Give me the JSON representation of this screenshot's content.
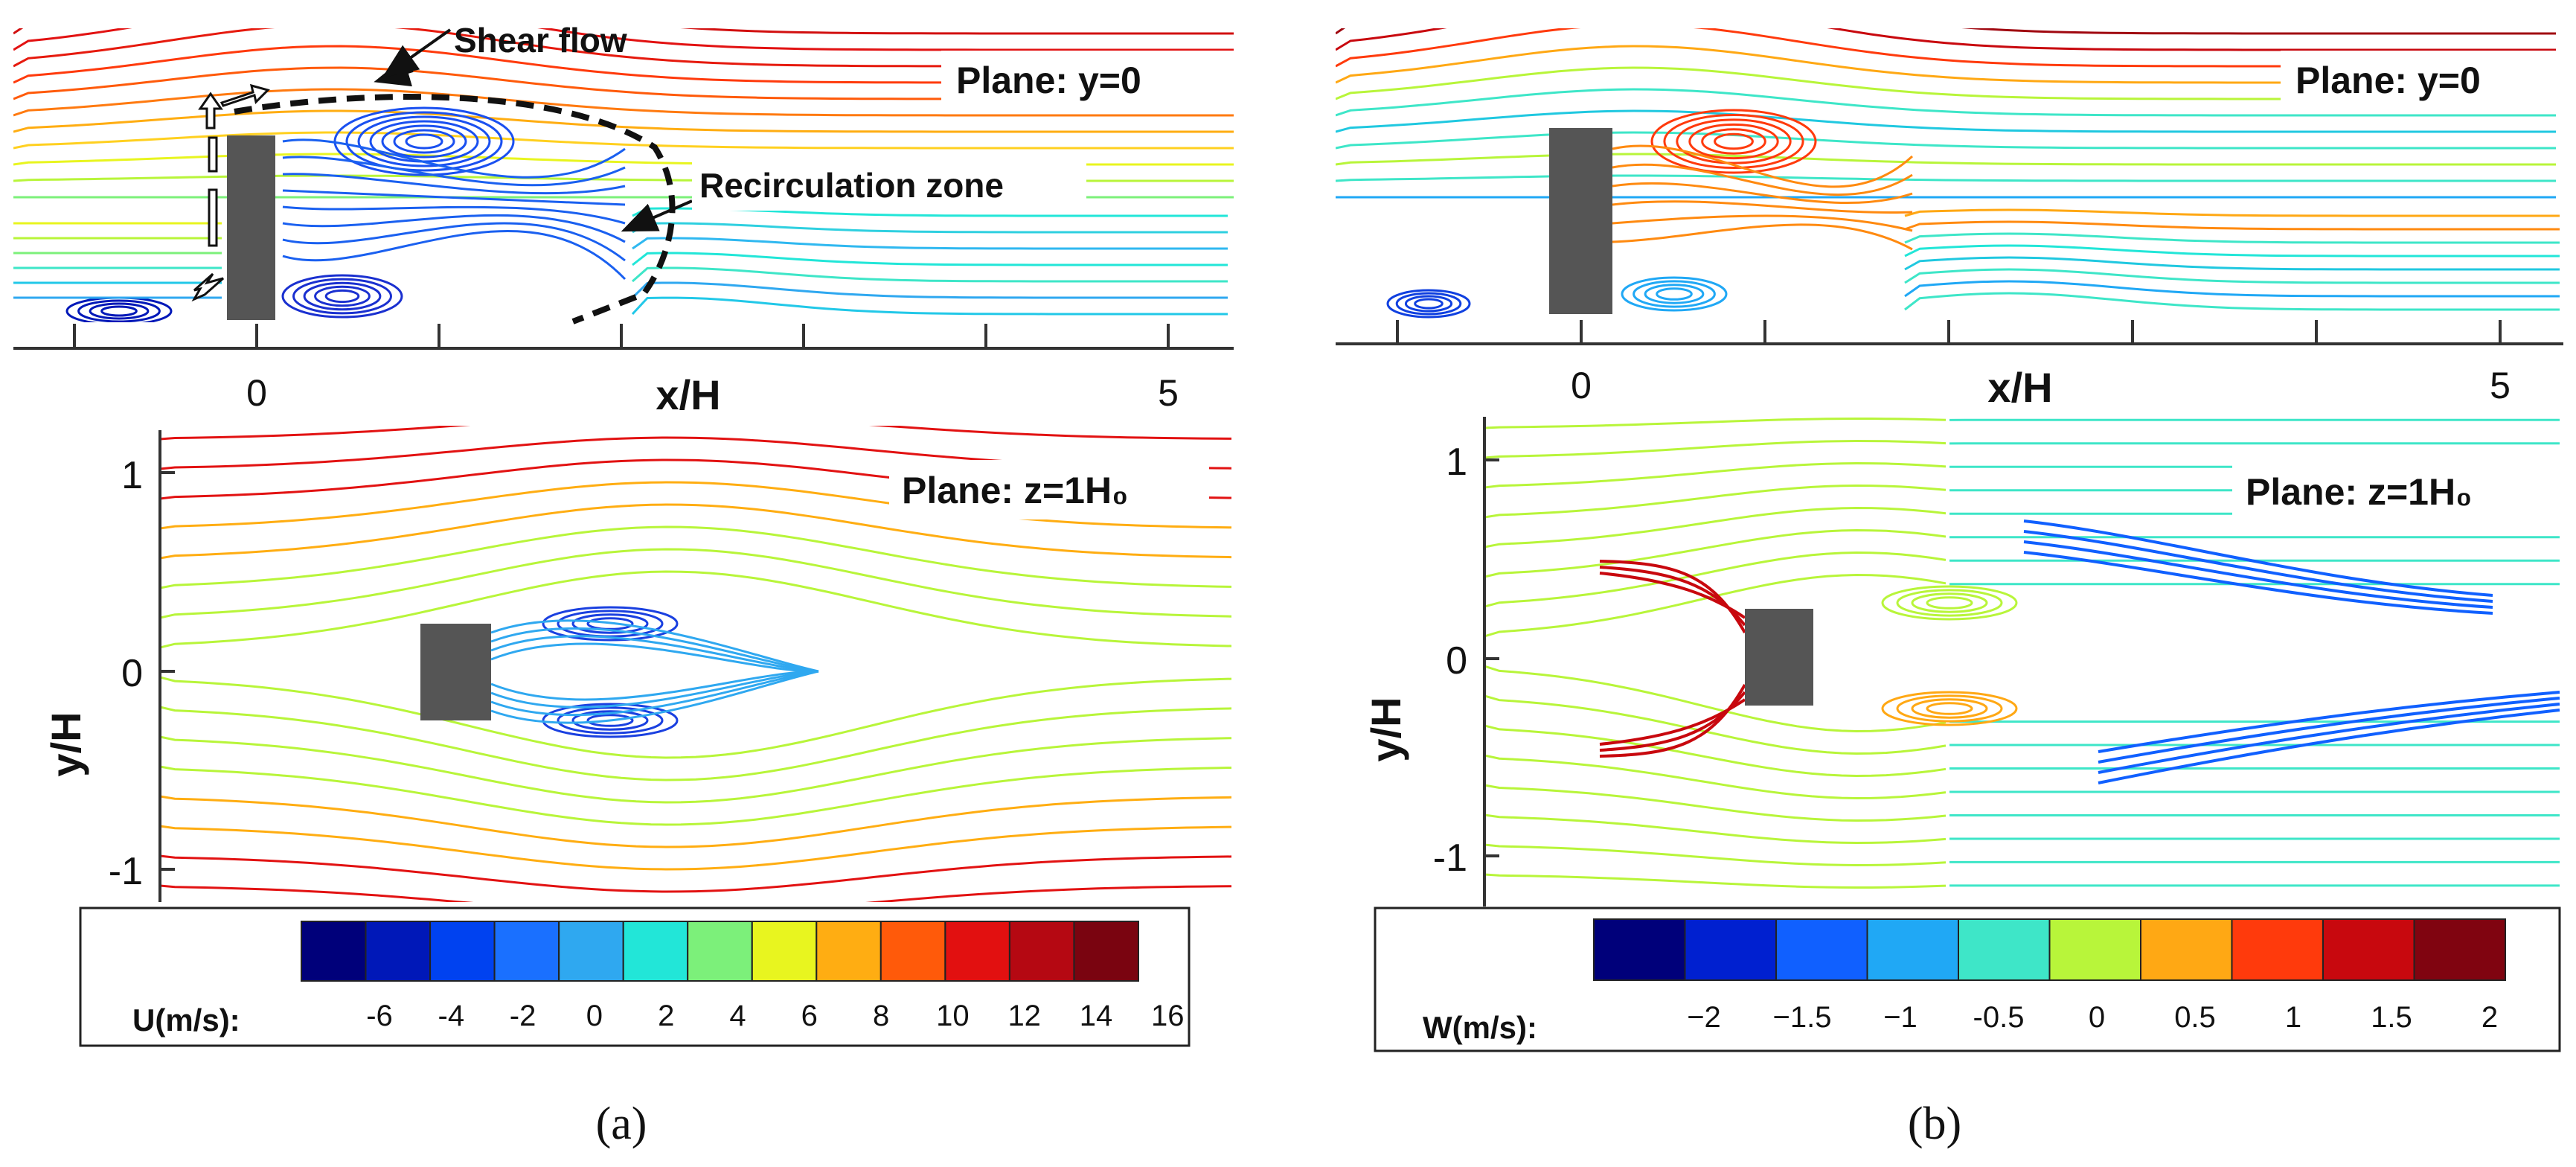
{
  "panels": [
    {
      "id": "a",
      "caption": "(a)",
      "top_plane_label": "Plane: y=0",
      "bottom_plane_label": "Plane: z=1H₀",
      "annotations": {
        "shear": "Shear flow",
        "recirc": "Recirculation zone"
      },
      "x_axis_label": "x/H",
      "x_ticks": [
        "0",
        "5"
      ],
      "y_axis_label": "y/H",
      "y_ticks": [
        "1",
        "0",
        "-1"
      ],
      "colorbar": {
        "title": "U(m/s):",
        "labels": [
          "-6",
          "-4",
          "-2",
          "0",
          "2",
          "4",
          "6",
          "8",
          "10",
          "12",
          "14",
          "16"
        ],
        "colors": [
          "#00007a",
          "#0018b8",
          "#0042f0",
          "#1a70ff",
          "#2fa8f0",
          "#22e6d8",
          "#7cf07a",
          "#e8f51f",
          "#ffad12",
          "#ff5a0a",
          "#e21010",
          "#b50812",
          "#7a0410"
        ]
      }
    },
    {
      "id": "b",
      "caption": "(b)",
      "top_plane_label": "Plane: y=0",
      "bottom_plane_label": "Plane: z=1H₀",
      "x_axis_label": "x/H",
      "x_ticks": [
        "0",
        "5"
      ],
      "y_axis_label": "y/H",
      "y_ticks": [
        "1",
        "0",
        "-1"
      ],
      "colorbar": {
        "title": "W(m/s):",
        "labels": [
          "−2",
          "−1.5",
          "−1",
          "-0.5",
          "0",
          "0.5",
          "1",
          "1.5",
          "2"
        ],
        "colors": [
          "#00007a",
          "#0020d0",
          "#1060ff",
          "#20a8f5",
          "#3ee6c8",
          "#b8f53a",
          "#ffa814",
          "#ff3a0c",
          "#c8080e",
          "#800410"
        ]
      }
    }
  ]
}
